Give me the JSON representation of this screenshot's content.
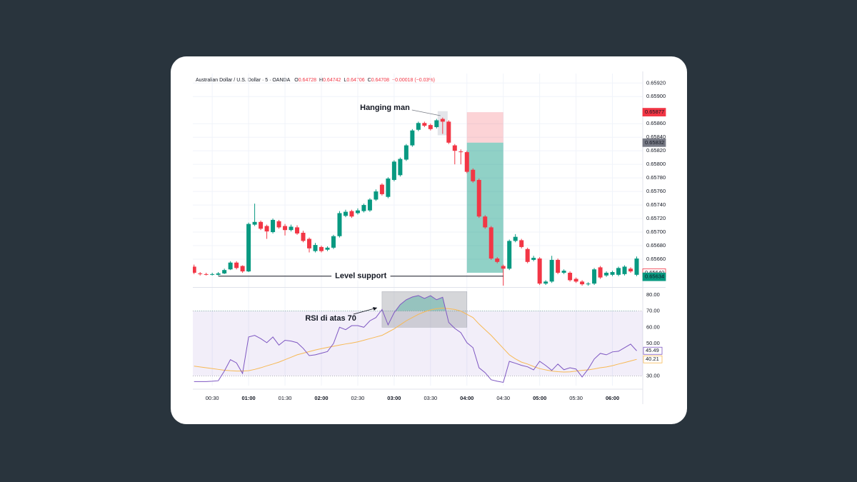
{
  "chart_data": {
    "type": "candlestick",
    "title": "Australian Dollar / U.S. Dollar · 5 · OANDA",
    "ohlc_legend": [
      {
        "label": "O",
        "value": "0.64728"
      },
      {
        "label": "H",
        "value": "0.64742"
      },
      {
        "label": "L",
        "value": "0.64706"
      },
      {
        "label": "C",
        "value": "0.64708"
      }
    ],
    "change": "−0.00018 (−0.03%)",
    "x": [
      15,
      20,
      25,
      30,
      35,
      40,
      45,
      50,
      55,
      60,
      65,
      70,
      75,
      80,
      85,
      90,
      95,
      100,
      105,
      110,
      115,
      120,
      125,
      130,
      135,
      140,
      145,
      150,
      155,
      160,
      165,
      170,
      175,
      180,
      185,
      190,
      195,
      200,
      205,
      210,
      215,
      220,
      225,
      230,
      235,
      240,
      245,
      250,
      255,
      260,
      265,
      270,
      275,
      280,
      285,
      290,
      295,
      300,
      305,
      310,
      315,
      320,
      325,
      330,
      335,
      340,
      345,
      350,
      355,
      360,
      365,
      370,
      375,
      380
    ],
    "open": [
      0.65649,
      0.65639,
      0.65638,
      0.65637,
      0.65637,
      0.65639,
      0.65645,
      0.65655,
      0.6565,
      0.65642,
      0.65711,
      0.65715,
      0.65709,
      0.657,
      0.65716,
      0.65709,
      0.65703,
      0.65707,
      0.65699,
      0.6569,
      0.65672,
      0.65678,
      0.65674,
      0.65677,
      0.65694,
      0.65724,
      0.65731,
      0.65728,
      0.65731,
      0.65732,
      0.65748,
      0.6577,
      0.65752,
      0.65777,
      0.65784,
      0.65807,
      0.65828,
      0.65851,
      0.65861,
      0.65858,
      0.65855,
      0.65867,
      0.65863,
      0.65828,
      0.65819,
      0.65818,
      0.65792,
      0.65777,
      0.65723,
      0.65707,
      0.65661,
      0.6565,
      0.65646,
      0.65687,
      0.65688,
      0.65675,
      0.65659,
      0.65661,
      0.65624,
      0.65627,
      0.65659,
      0.6564,
      0.6564,
      0.65631,
      0.65627,
      0.65623,
      0.65624,
      0.65648,
      0.65636,
      0.65637,
      0.65637,
      0.65638,
      0.65646,
      0.65637
    ],
    "high": [
      0.65652,
      0.65641,
      0.6564,
      0.6564,
      0.65641,
      0.65646,
      0.65657,
      0.65657,
      0.65651,
      0.65714,
      0.65742,
      0.65717,
      0.65711,
      0.6572,
      0.65718,
      0.65712,
      0.65711,
      0.6571,
      0.65702,
      0.65692,
      0.65684,
      0.6568,
      0.65679,
      0.65696,
      0.65731,
      0.65733,
      0.65733,
      0.65735,
      0.65742,
      0.6575,
      0.65763,
      0.65772,
      0.65781,
      0.65806,
      0.6581,
      0.6583,
      0.65852,
      0.65863,
      0.65863,
      0.6586,
      0.65867,
      0.65869,
      0.65865,
      0.6583,
      0.65822,
      0.6582,
      0.65794,
      0.65779,
      0.65725,
      0.65709,
      0.65663,
      0.65652,
      0.65689,
      0.65697,
      0.6569,
      0.65677,
      0.65665,
      0.65663,
      0.65629,
      0.65665,
      0.65661,
      0.65645,
      0.65642,
      0.65633,
      0.65629,
      0.65626,
      0.65647,
      0.6565,
      0.65642,
      0.65643,
      0.65649,
      0.65651,
      0.65648,
      0.65664
    ],
    "low": [
      0.65638,
      0.65636,
      0.65636,
      0.65636,
      0.65636,
      0.65638,
      0.65644,
      0.65645,
      0.6564,
      0.65641,
      0.65709,
      0.65703,
      0.6569,
      0.65698,
      0.65705,
      0.65695,
      0.65701,
      0.65696,
      0.65685,
      0.6567,
      0.6567,
      0.6567,
      0.65672,
      0.65675,
      0.65692,
      0.65722,
      0.65721,
      0.65726,
      0.65729,
      0.6573,
      0.65746,
      0.65754,
      0.6575,
      0.65775,
      0.65782,
      0.65805,
      0.65826,
      0.65849,
      0.65855,
      0.6585,
      0.65853,
      0.65845,
      0.6583,
      0.658,
      0.658,
      0.65787,
      0.65773,
      0.65721,
      0.65705,
      0.65659,
      0.65654,
      0.6562,
      0.65644,
      0.65685,
      0.65676,
      0.65654,
      0.65657,
      0.65622,
      0.65622,
      0.65625,
      0.65638,
      0.65638,
      0.65627,
      0.65625,
      0.65621,
      0.65621,
      0.65622,
      0.65631,
      0.65634,
      0.65635,
      0.65635,
      0.65636,
      0.6564,
      0.65635
    ],
    "close": [
      0.6564,
      0.65638,
      0.65637,
      0.65638,
      0.65639,
      0.65644,
      0.65655,
      0.65647,
      0.65642,
      0.65712,
      0.65715,
      0.65705,
      0.65701,
      0.65718,
      0.65707,
      0.65703,
      0.65708,
      0.65698,
      0.65687,
      0.65676,
      0.65681,
      0.65672,
      0.65677,
      0.65694,
      0.65728,
      0.6573,
      0.65723,
      0.65732,
      0.6574,
      0.65748,
      0.6576,
      0.65756,
      0.65779,
      0.65804,
      0.65808,
      0.65828,
      0.6585,
      0.65861,
      0.65857,
      0.65852,
      0.65865,
      0.65863,
      0.65832,
      0.6582,
      0.65818,
      0.65789,
      0.65775,
      0.65723,
      0.65707,
      0.65661,
      0.65656,
      0.65646,
      0.65687,
      0.65693,
      0.65678,
      0.65656,
      0.65662,
      0.65624,
      0.65627,
      0.65659,
      0.6564,
      0.65643,
      0.65629,
      0.65627,
      0.65623,
      0.65624,
      0.65645,
      0.65633,
      0.6564,
      0.65641,
      0.65647,
      0.65649,
      0.65642,
      0.65661
    ],
    "up_color": "#089981",
    "down_color": "#f23645",
    "xlim": [
      14,
      385
    ],
    "xticks": [
      {
        "value": 30,
        "label": "00:30"
      },
      {
        "value": 60,
        "label": "01:00"
      },
      {
        "value": 90,
        "label": "01:30"
      },
      {
        "value": 120,
        "label": "02:00"
      },
      {
        "value": 150,
        "label": "02:30"
      },
      {
        "value": 180,
        "label": "03:00"
      },
      {
        "value": 210,
        "label": "03:30"
      },
      {
        "value": 240,
        "label": "04:00"
      },
      {
        "value": 270,
        "label": "04:30"
      },
      {
        "value": 300,
        "label": "05:00"
      },
      {
        "value": 330,
        "label": "05:30"
      },
      {
        "value": 360,
        "label": "06:00"
      }
    ],
    "ylim": [
      0.65621,
      0.65934
    ],
    "yticks": [
      {
        "value": 0.6592,
        "label": "0.65920"
      },
      {
        "value": 0.659,
        "label": "0.65900"
      },
      {
        "value": 0.6586,
        "label": "0.65860"
      },
      {
        "value": 0.6584,
        "label": "0.65840"
      },
      {
        "value": 0.6582,
        "label": "0.65820"
      },
      {
        "value": 0.658,
        "label": "0.65800"
      },
      {
        "value": 0.6578,
        "label": "0.65780"
      },
      {
        "value": 0.6576,
        "label": "0.65760"
      },
      {
        "value": 0.6574,
        "label": "0.65740"
      },
      {
        "value": 0.6572,
        "label": "0.65720"
      },
      {
        "value": 0.657,
        "label": "0.65700"
      },
      {
        "value": 0.6568,
        "label": "0.65680"
      },
      {
        "value": 0.6566,
        "label": "0.65660"
      }
    ],
    "grid": true,
    "price_labels": [
      {
        "value": 0.65877,
        "label": "0.65877",
        "color": "#f23645",
        "outline": false
      },
      {
        "value": 0.65832,
        "label": "0.65832",
        "color": "#787b86",
        "outline": false
      },
      {
        "value": 0.6564,
        "label": "0.65640",
        "color": "#f23645",
        "outline": true
      },
      {
        "value": 0.65634,
        "label": "0.65634",
        "color": "#089981",
        "outline": false
      }
    ],
    "position": {
      "start": 240,
      "end": 270,
      "stop": 0.65877,
      "entry": 0.65832,
      "target": 0.6564
    },
    "support": {
      "label": "Level support",
      "value": 0.65635,
      "start": 35,
      "end": 270
    },
    "hanging_man": {
      "text": "Hanging man",
      "x": 220
    },
    "rsi": {
      "ylim": [
        24,
        83.5
      ],
      "yticks": [
        {
          "value": 80,
          "label": "80.00"
        },
        {
          "value": 70,
          "label": "70.00"
        },
        {
          "value": 60,
          "label": "60.00"
        },
        {
          "value": 50,
          "label": "50.00"
        },
        {
          "value": 40,
          "label": "40.00"
        },
        {
          "value": 30,
          "label": "30.00"
        }
      ],
      "upper": 70,
      "lower": 30,
      "series": [
        {
          "color": "#7e57c2",
          "values": [
            26.5,
            26.5,
            26.5,
            26.7,
            27.0,
            33,
            40,
            38,
            31.5,
            54,
            55,
            53,
            50.5,
            54,
            49,
            52,
            51.5,
            50.5,
            47,
            42.5,
            43,
            44,
            45,
            50,
            60,
            58.5,
            61,
            61,
            60,
            64,
            66,
            71,
            61.5,
            69,
            74,
            77,
            78.7,
            79.6,
            77.8,
            79.5,
            77,
            78.5,
            63,
            59.3,
            56.7,
            50.5,
            47.4,
            35,
            32,
            27.6,
            26.7,
            26,
            39,
            37.8,
            36.5,
            35.6,
            33.7,
            39,
            36.4,
            33.4,
            37.3,
            33.8,
            35,
            34.2,
            29.3,
            34.2,
            40.4,
            43.9,
            43,
            44.8,
            45.2,
            47.4,
            49.6,
            45.49
          ]
        },
        {
          "color": "#f7b955",
          "values": [
            36,
            35.5,
            35,
            34.5,
            34,
            33.5,
            33.2,
            33,
            33,
            33.2,
            34,
            35,
            36.2,
            37.3,
            38.5,
            40,
            41.5,
            43,
            44,
            45,
            46,
            46.8,
            47.6,
            48.3,
            49,
            49.7,
            50.3,
            51,
            52,
            53,
            54,
            55,
            57,
            59,
            61.5,
            64,
            66,
            68,
            69.5,
            70.7,
            71.5,
            71.8,
            71.5,
            71,
            70,
            68,
            66,
            62,
            58.5,
            55,
            51,
            47,
            43,
            40.5,
            38.5,
            37.3,
            35.8,
            34.5,
            33.7,
            33,
            32.6,
            32.4,
            32.5,
            33,
            33.4,
            33.7,
            34.3,
            35,
            35.5,
            36.3,
            37.3,
            38.2,
            39.2,
            40.21
          ]
        }
      ],
      "highlight": {
        "start": 170,
        "end": 240,
        "top": 82,
        "bottom": 60
      },
      "annotation": {
        "text": "RSI di atas 70"
      }
    }
  }
}
